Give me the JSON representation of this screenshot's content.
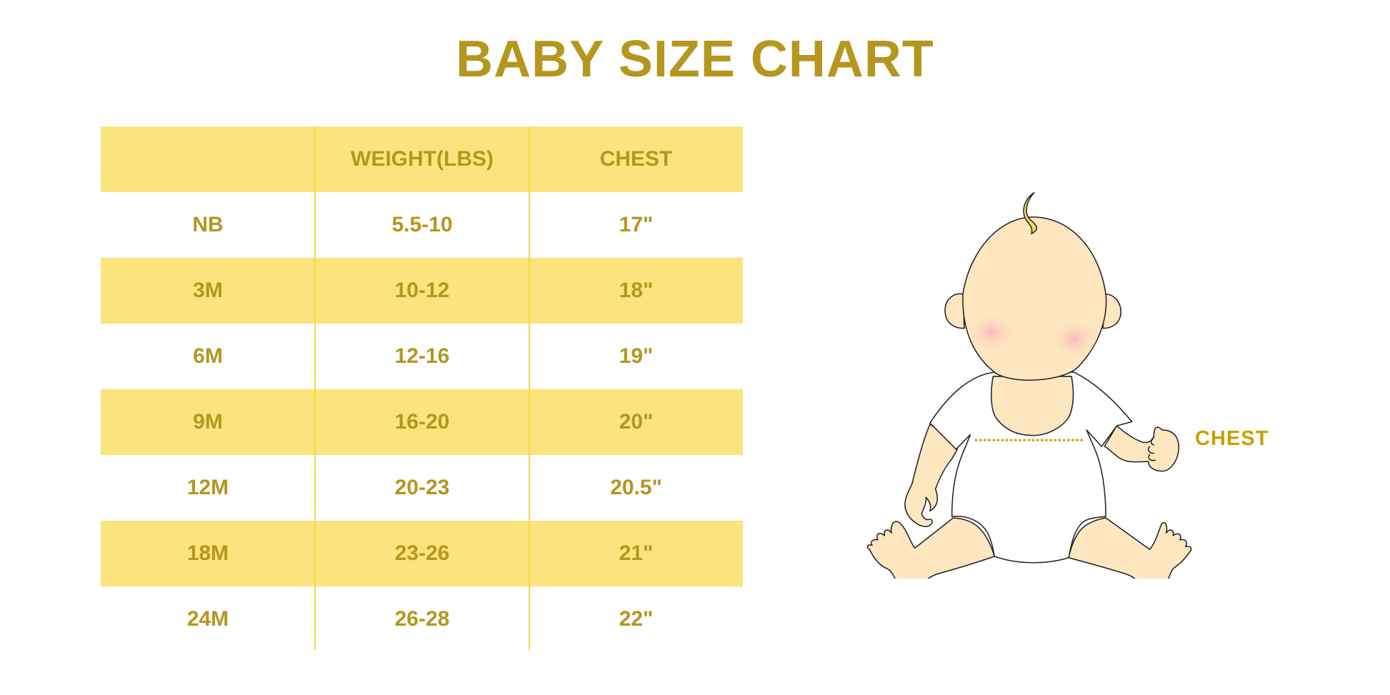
{
  "title": "BABY SIZE CHART",
  "table": {
    "headers": [
      "",
      "WEIGHT(LBS)",
      "CHEST"
    ],
    "rows": [
      [
        "NB",
        "5.5-10",
        "17\""
      ],
      [
        "3M",
        "10-12",
        "18\""
      ],
      [
        "6M",
        "12-16",
        "19\""
      ],
      [
        "9M",
        "16-20",
        "20\""
      ],
      [
        "12M",
        "20-23",
        "20.5\""
      ],
      [
        "18M",
        "23-26",
        "21\""
      ],
      [
        "24M",
        "26-28",
        "22\""
      ]
    ]
  },
  "illustration": {
    "subject": "baby-icon",
    "chest_label": "CHEST"
  },
  "colors": {
    "text": "#b5961f",
    "band": "#fbe47d",
    "divider": "#f9d84a",
    "chest_line": "#c9a000",
    "skin": "#fde6c0"
  }
}
